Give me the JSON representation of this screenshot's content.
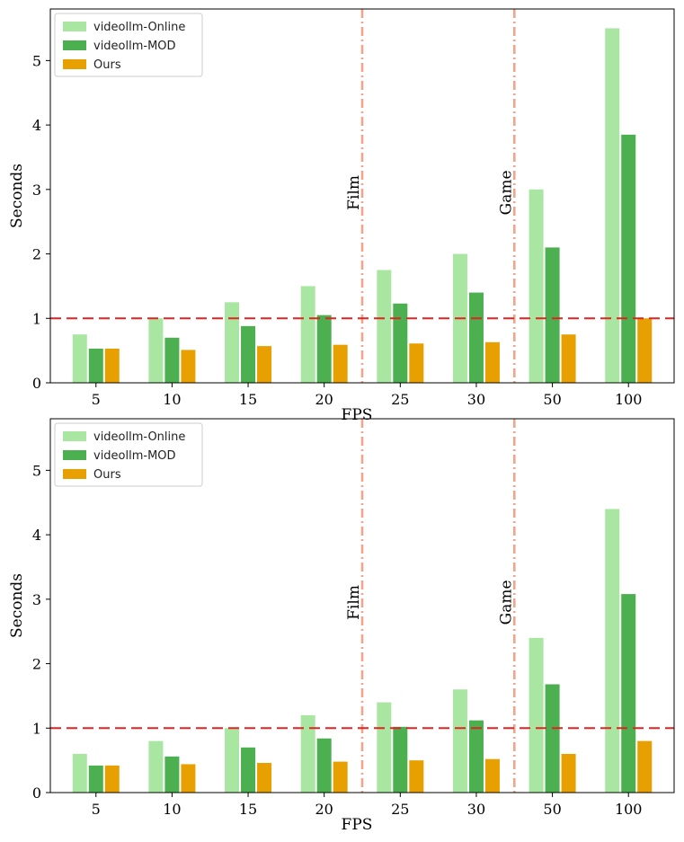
{
  "chart_data": [
    {
      "type": "bar",
      "title": "",
      "xlabel": "FPS",
      "ylabel": "Seconds",
      "ylim": [
        0,
        5.8
      ],
      "yticks": [
        0,
        1,
        2,
        3,
        4,
        5
      ],
      "categories": [
        "5",
        "10",
        "15",
        "20",
        "25",
        "30",
        "50",
        "100"
      ],
      "series": [
        {
          "name": "videollm-Online",
          "color": "#a8e6a1",
          "values": [
            0.75,
            1.0,
            1.25,
            1.5,
            1.75,
            2.0,
            3.0,
            5.5
          ]
        },
        {
          "name": "videollm-MOD",
          "color": "#4caf50",
          "values": [
            0.53,
            0.7,
            0.88,
            1.05,
            1.23,
            1.4,
            2.1,
            3.85
          ]
        },
        {
          "name": "Ours",
          "color": "#e8a000",
          "values": [
            0.53,
            0.51,
            0.57,
            0.59,
            0.61,
            0.63,
            0.75,
            1.0
          ]
        }
      ],
      "threshold": {
        "value": 1.0,
        "color": "#e52222"
      },
      "vlines": [
        {
          "label": "Film",
          "after_category": "20",
          "color": "#f0a58a"
        },
        {
          "label": "Game",
          "after_category": "30",
          "color": "#f0a58a"
        }
      ],
      "legend": "top-left"
    },
    {
      "type": "bar",
      "title": "",
      "xlabel": "FPS",
      "ylabel": "Seconds",
      "ylim": [
        0,
        5.8
      ],
      "yticks": [
        0,
        1,
        2,
        3,
        4,
        5
      ],
      "categories": [
        "5",
        "10",
        "15",
        "20",
        "25",
        "30",
        "50",
        "100"
      ],
      "series": [
        {
          "name": "videollm-Online",
          "color": "#a8e6a1",
          "values": [
            0.6,
            0.8,
            1.0,
            1.2,
            1.4,
            1.6,
            2.4,
            4.4
          ]
        },
        {
          "name": "videollm-MOD",
          "color": "#4caf50",
          "values": [
            0.42,
            0.56,
            0.7,
            0.84,
            1.02,
            1.12,
            1.68,
            3.08
          ]
        },
        {
          "name": "Ours",
          "color": "#e8a000",
          "values": [
            0.42,
            0.44,
            0.46,
            0.48,
            0.5,
            0.52,
            0.6,
            0.8
          ]
        }
      ],
      "threshold": {
        "value": 1.0,
        "color": "#e52222"
      },
      "vlines": [
        {
          "label": "Film",
          "after_category": "20",
          "color": "#f0a58a"
        },
        {
          "label": "Game",
          "after_category": "30",
          "color": "#f0a58a"
        }
      ],
      "legend": "top-left"
    }
  ]
}
